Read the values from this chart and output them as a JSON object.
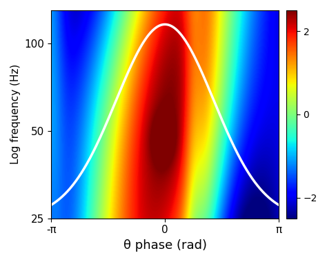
{
  "xlabel": "θ phase (rad)",
  "ylabel": "Log frequency (Hz)",
  "yticks": [
    25,
    50,
    100
  ],
  "ytick_labels": [
    "25",
    "50",
    "100"
  ],
  "xticks": [
    -3.14159265,
    0,
    3.14159265
  ],
  "xtick_labels": [
    "-π",
    "0",
    "π"
  ],
  "colorbar_ticks": [
    -2,
    0,
    2
  ],
  "vmin": -2.5,
  "vmax": 2.5,
  "freq_min": 25,
  "freq_max": 130,
  "n_phase": 300,
  "n_freq": 200
}
